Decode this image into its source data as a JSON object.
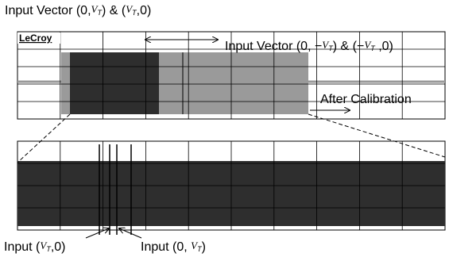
{
  "header": {
    "title": [
      {
        "text": "Input Vector (0,",
        "style": "normal"
      },
      {
        "text": "V",
        "style": "var"
      },
      {
        "text": "T",
        "style": "sub"
      },
      {
        "text": ") & (",
        "style": "normal"
      },
      {
        "text": "V",
        "style": "var"
      },
      {
        "text": "T",
        "style": "sub"
      },
      {
        "text": ",0)",
        "style": "normal"
      }
    ]
  },
  "scope": {
    "brand": "LeCroy"
  },
  "annotations": {
    "negative_vector": [
      {
        "text": "Input Vector (0, −",
        "style": "normal"
      },
      {
        "text": "V",
        "style": "var"
      },
      {
        "text": "T",
        "style": "sub"
      },
      {
        "text": ") & (−",
        "style": "normal"
      },
      {
        "text": "V",
        "style": "var"
      },
      {
        "text": "T",
        "style": "sub"
      },
      {
        "text": " ,0)",
        "style": "normal"
      }
    ],
    "after_calibration": [
      {
        "text": "After Calibration",
        "style": "normal"
      }
    ],
    "input_vt_0": [
      {
        "text": "Input (",
        "style": "normal"
      },
      {
        "text": "V",
        "style": "var"
      },
      {
        "text": "T",
        "style": "sub"
      },
      {
        "text": ",0)",
        "style": "normal"
      }
    ],
    "input_0_vt": [
      {
        "text": "Input (0, ",
        "style": "normal"
      },
      {
        "text": "V",
        "style": "var"
      },
      {
        "text": "T",
        "style": "sub"
      },
      {
        "text": ")",
        "style": "normal"
      }
    ]
  }
}
